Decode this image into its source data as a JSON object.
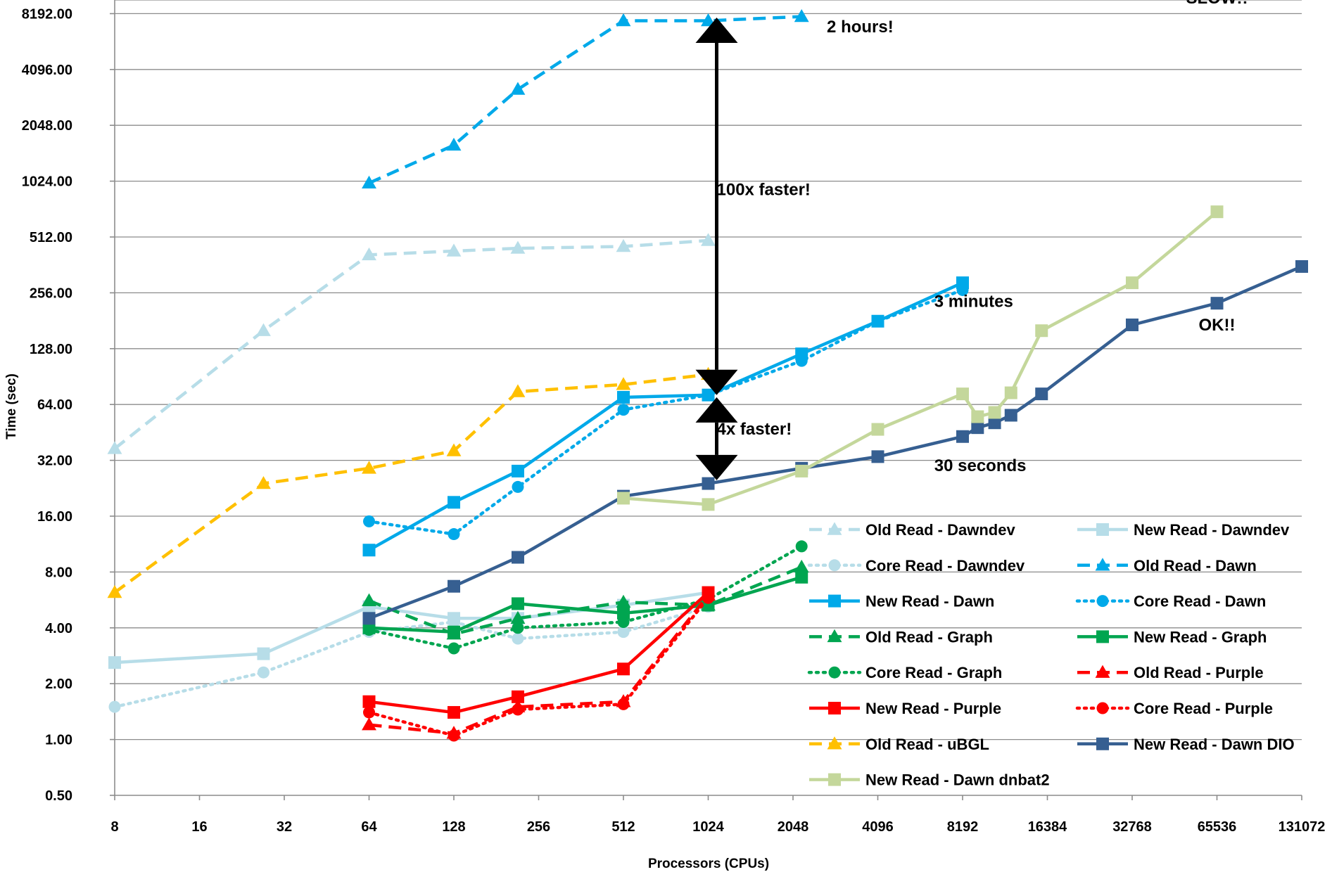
{
  "chart_data": {
    "type": "line",
    "title": "",
    "xlabel": "Processors (CPUs)",
    "ylabel": "Time (sec)",
    "x_scale": "log2",
    "y_scale": "log2",
    "xlim": [
      8,
      131072
    ],
    "ylim": [
      0.5,
      11585
    ],
    "x_ticks": [
      "8",
      "16",
      "32",
      "64",
      "128",
      "256",
      "512",
      "1024",
      "2048",
      "4096",
      "8192",
      "16384",
      "32768",
      "65536",
      "131072"
    ],
    "y_ticks": [
      "0.50",
      "1.00",
      "2.00",
      "4.00",
      "8.00",
      "16.00",
      "32.00",
      "64.00",
      "128.00",
      "256.00",
      "512.00",
      "1024.00",
      "2048.00",
      "4096.00",
      "8192.00"
    ],
    "grid": "horizontal",
    "legend_position": "bottom-right",
    "series": [
      {
        "name": "Old Read - Dawndev",
        "color": "#b7dde8",
        "dash": "dash",
        "marker": "triangle",
        "points": [
          [
            8,
            37
          ],
          [
            27,
            160
          ],
          [
            64,
            410
          ],
          [
            128,
            430
          ],
          [
            216,
            445
          ],
          [
            512,
            455
          ],
          [
            1024,
            490
          ]
        ]
      },
      {
        "name": "New Read - Dawndev",
        "color": "#b7dde8",
        "dash": "solid",
        "marker": "square",
        "points": [
          [
            8,
            2.6
          ],
          [
            27,
            2.9
          ],
          [
            64,
            5.2
          ],
          [
            128,
            4.5
          ],
          [
            216,
            4.5
          ],
          [
            512,
            5.3
          ],
          [
            1024,
            6.2
          ]
        ]
      },
      {
        "name": "Core Read - Dawndev",
        "color": "#b7dde8",
        "dash": "dot",
        "marker": "circle",
        "points": [
          [
            8,
            1.5
          ],
          [
            27,
            2.3
          ],
          [
            64,
            3.8
          ],
          [
            128,
            4.3
          ],
          [
            216,
            3.5
          ],
          [
            512,
            3.8
          ],
          [
            1024,
            5.2
          ]
        ]
      },
      {
        "name": "Old Read - Dawn",
        "color": "#00a9e9",
        "dash": "dash",
        "marker": "triangle",
        "points": [
          [
            64,
            1000
          ],
          [
            128,
            1600
          ],
          [
            216,
            3200
          ],
          [
            512,
            7500
          ],
          [
            1024,
            7500
          ],
          [
            2197,
            7900
          ]
        ]
      },
      {
        "name": "New Read - Dawn",
        "color": "#00a9e9",
        "dash": "solid",
        "marker": "square",
        "points": [
          [
            64,
            10.5
          ],
          [
            128,
            19
          ],
          [
            216,
            28
          ],
          [
            512,
            70
          ],
          [
            1024,
            72
          ],
          [
            2197,
            120
          ],
          [
            4096,
            180
          ],
          [
            8192,
            290
          ]
        ]
      },
      {
        "name": "Core Read - Dawn",
        "color": "#00a9e9",
        "dash": "dot",
        "marker": "circle",
        "points": [
          [
            64,
            15
          ],
          [
            128,
            12.8
          ],
          [
            216,
            23
          ],
          [
            512,
            60
          ],
          [
            1024,
            72
          ],
          [
            2197,
            110
          ],
          [
            4096,
            180
          ],
          [
            8192,
            265
          ]
        ]
      },
      {
        "name": "Old Read - Graph",
        "color": "#00a550",
        "dash": "dash",
        "marker": "triangle",
        "points": [
          [
            64,
            5.6
          ],
          [
            128,
            3.7
          ],
          [
            216,
            4.5
          ],
          [
            512,
            5.5
          ],
          [
            1024,
            5.3
          ],
          [
            2197,
            8.5
          ]
        ]
      },
      {
        "name": "New Read - Graph",
        "color": "#00a550",
        "dash": "solid",
        "marker": "square",
        "points": [
          [
            64,
            4.0
          ],
          [
            128,
            3.8
          ],
          [
            216,
            5.4
          ],
          [
            512,
            4.8
          ],
          [
            1024,
            5.3
          ],
          [
            2197,
            7.5
          ]
        ]
      },
      {
        "name": "Core Read - Graph",
        "color": "#00a550",
        "dash": "dot",
        "marker": "circle",
        "points": [
          [
            64,
            3.9
          ],
          [
            128,
            3.1
          ],
          [
            216,
            4.0
          ],
          [
            512,
            4.3
          ],
          [
            1024,
            5.7
          ],
          [
            2197,
            11
          ]
        ]
      },
      {
        "name": "Old Read - Purple",
        "color": "#ff0000",
        "dash": "dash",
        "marker": "triangle",
        "points": [
          [
            64,
            1.2
          ],
          [
            128,
            1.08
          ],
          [
            216,
            1.5
          ],
          [
            512,
            1.6
          ],
          [
            1024,
            6.0
          ]
        ]
      },
      {
        "name": "New Read - Purple",
        "color": "#ff0000",
        "dash": "solid",
        "marker": "square",
        "points": [
          [
            64,
            1.6
          ],
          [
            128,
            1.4
          ],
          [
            216,
            1.7
          ],
          [
            512,
            2.4
          ],
          [
            1024,
            6.2
          ]
        ]
      },
      {
        "name": "Core Read - Purple",
        "color": "#ff0000",
        "dash": "dot",
        "marker": "circle",
        "points": [
          [
            64,
            1.4
          ],
          [
            128,
            1.05
          ],
          [
            216,
            1.45
          ],
          [
            512,
            1.55
          ],
          [
            1024,
            5.8
          ]
        ]
      },
      {
        "name": "Old Read - uBGL",
        "color": "#ffc000",
        "dash": "dash",
        "marker": "triangle",
        "points": [
          [
            8,
            6.2
          ],
          [
            27,
            24
          ],
          [
            64,
            29
          ],
          [
            128,
            36
          ],
          [
            216,
            75
          ],
          [
            512,
            82
          ],
          [
            1024,
            93
          ]
        ]
      },
      {
        "name": "New Read - Dawn DIO",
        "color": "#365f91",
        "dash": "solid",
        "marker": "square",
        "points": [
          [
            64,
            4.5
          ],
          [
            128,
            6.7
          ],
          [
            216,
            9.6
          ],
          [
            512,
            20.5
          ],
          [
            1024,
            24
          ],
          [
            2197,
            29
          ],
          [
            4096,
            33.5
          ],
          [
            8192,
            43
          ],
          [
            9261,
            48
          ],
          [
            10648,
            51
          ],
          [
            12167,
            56
          ],
          [
            15625,
            73
          ],
          [
            32768,
            172
          ],
          [
            65536,
            225
          ],
          [
            131072,
            355
          ]
        ]
      },
      {
        "name": "New Read - Dawn dnbat2",
        "color": "#c4d79b",
        "dash": "solid",
        "marker": "square",
        "points": [
          [
            512,
            20
          ],
          [
            1024,
            18.5
          ],
          [
            2197,
            28
          ],
          [
            4096,
            47
          ],
          [
            8192,
            73
          ],
          [
            9261,
            55
          ],
          [
            10648,
            58
          ],
          [
            12167,
            74
          ],
          [
            15625,
            160
          ],
          [
            32768,
            290
          ],
          [
            65536,
            700
          ]
        ]
      },
      {
        "name": "",
        "color": "#00a9e9",
        "dash": "none",
        "marker": "square",
        "points": [
          [
            65536,
            11585
          ]
        ]
      }
    ],
    "annotations": [
      {
        "text": "2 hours!",
        "x": 2700,
        "y": 6500
      },
      {
        "text": "100x faster!",
        "x": 1024,
        "y": 860
      },
      {
        "text": "3 minutes",
        "x": 6500,
        "y": 215
      },
      {
        "text": "4x faster!",
        "x": 1024,
        "y": 44
      },
      {
        "text": "30 seconds",
        "x": 6500,
        "y": 28
      },
      {
        "text": "SLOW!!",
        "x": 65536,
        "y": 9300
      },
      {
        "text": "OK!!",
        "x": 65536,
        "y": 160
      }
    ],
    "arrows": [
      {
        "x": 1024,
        "from": 7800,
        "to": 72
      },
      {
        "x": 1024,
        "from": 70,
        "to": 25
      }
    ]
  }
}
